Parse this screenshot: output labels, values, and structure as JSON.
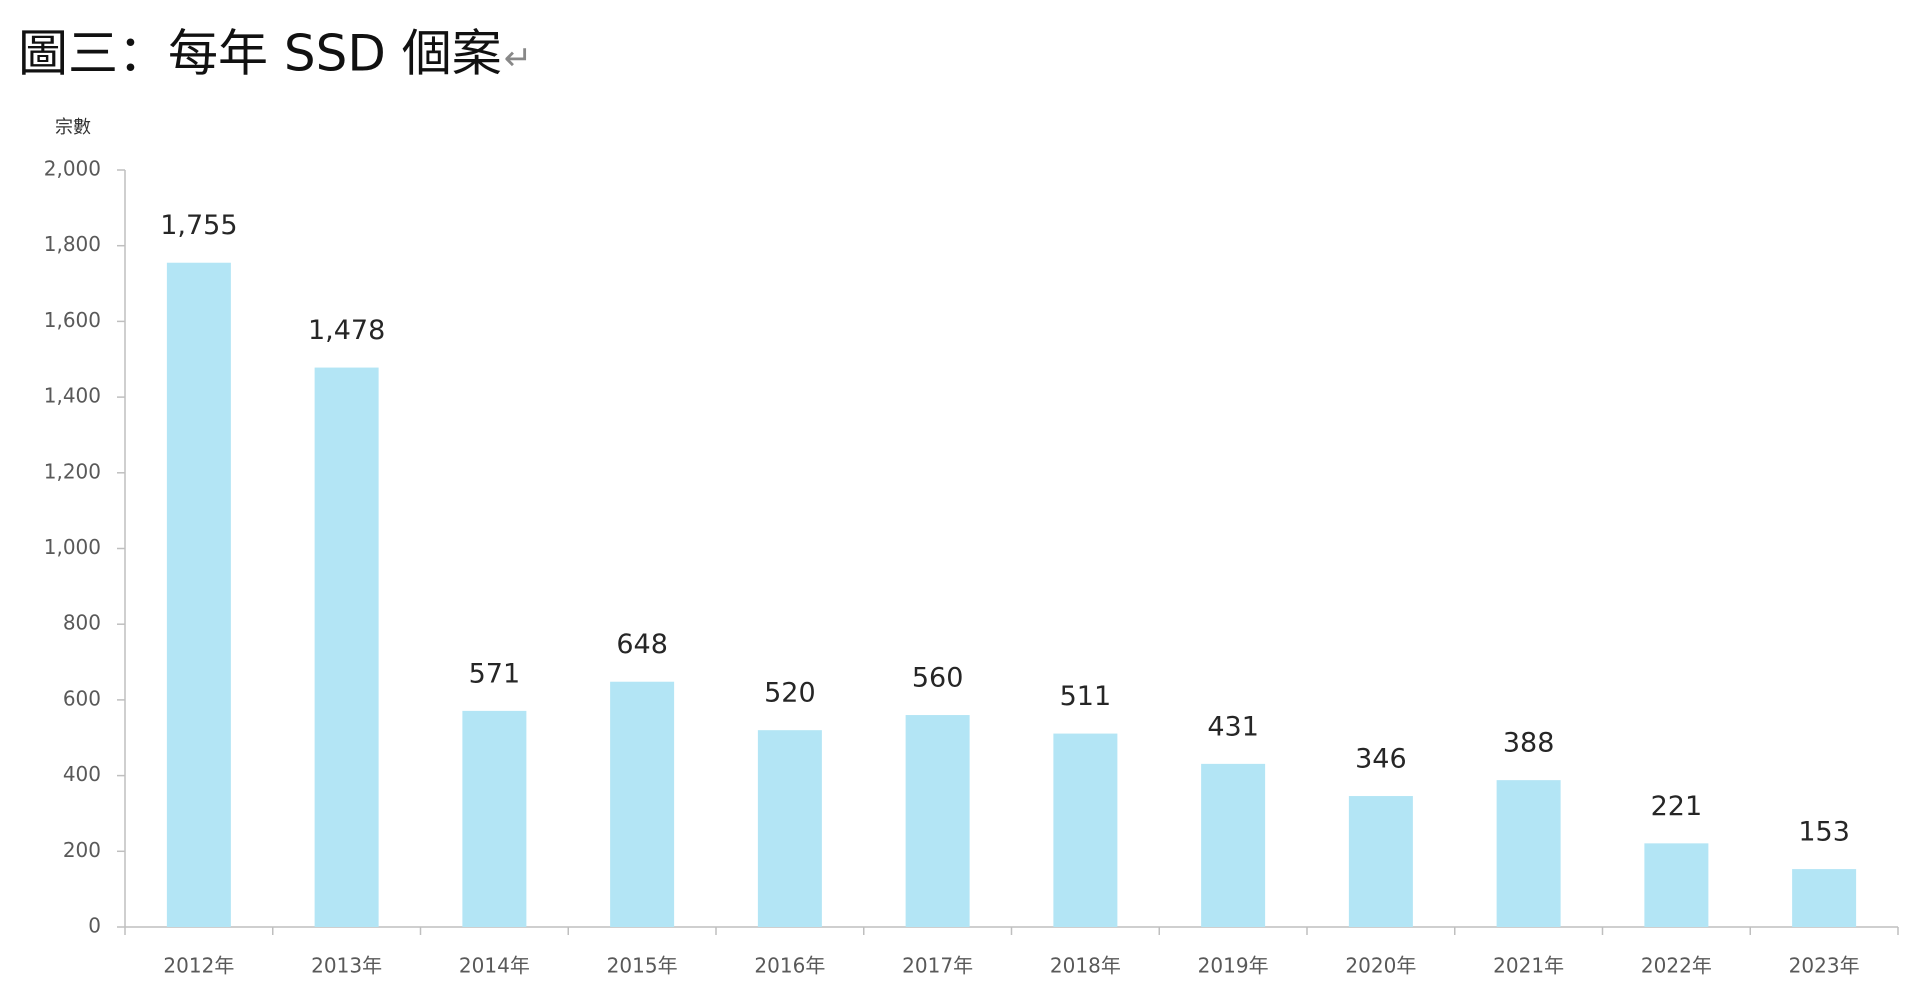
{
  "chart_data": {
    "type": "bar",
    "title": "圖三：每年 SSD 個案",
    "paragraph_mark": "↵",
    "y_label": "宗數",
    "categories": [
      "2012年",
      "2013年",
      "2014年",
      "2015年",
      "2016年",
      "2017年",
      "2018年",
      "2019年",
      "2020年",
      "2021年",
      "2022年",
      "2023年"
    ],
    "values": [
      1755,
      1478,
      571,
      648,
      520,
      560,
      511,
      431,
      346,
      388,
      221,
      153
    ],
    "value_labels": [
      "1,755",
      "1,478",
      "571",
      "648",
      "520",
      "560",
      "511",
      "431",
      "346",
      "388",
      "221",
      "153"
    ],
    "color": "#b3e5f5",
    "ylim": [
      0,
      2000
    ],
    "yticks": [
      0,
      200,
      400,
      600,
      800,
      {
        "value": 1000,
        "label": "1,000"
      },
      {
        "value": 1200,
        "label": "1,200"
      },
      {
        "value": 1400,
        "label": "1,400"
      },
      {
        "value": 1600,
        "label": "1,600"
      },
      {
        "value": 1800,
        "label": "1,800"
      },
      {
        "value": 2000,
        "label": "2,000"
      }
    ],
    "grid": false
  }
}
